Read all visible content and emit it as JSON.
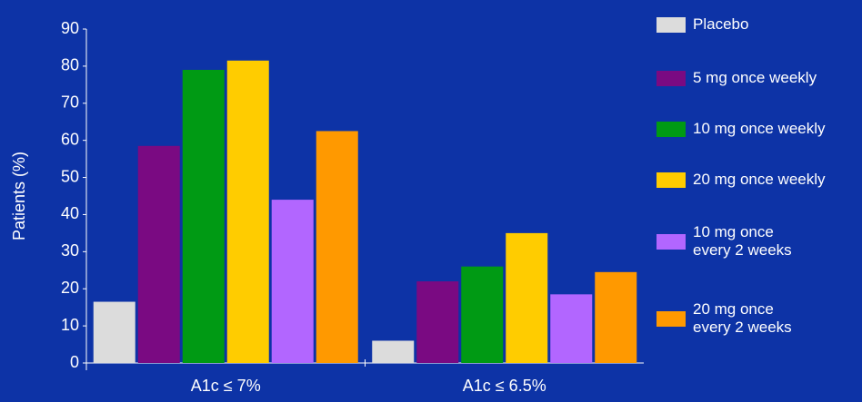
{
  "chart_data": {
    "type": "bar",
    "y_label": "Patients (%)",
    "categories": [
      "A1c ≤ 7%",
      "A1c ≤ 6.5%"
    ],
    "series": [
      {
        "name": "Placebo",
        "color": "#dcdcdc",
        "values": [
          16.5,
          6
        ]
      },
      {
        "name": "5 mg once weekly",
        "color": "#7a0a82",
        "values": [
          58.5,
          22
        ]
      },
      {
        "name": "10 mg once weekly",
        "color": "#009a14",
        "values": [
          79,
          26
        ]
      },
      {
        "name": "20 mg once weekly",
        "color": "#ffcc00",
        "values": [
          81.5,
          35
        ]
      },
      {
        "name": "10 mg once\nevery 2 weeks",
        "color": "#b266ff",
        "values": [
          44,
          18.5
        ]
      },
      {
        "name": "20 mg once\nevery 2 weeks",
        "color": "#ff9900",
        "values": [
          62.5,
          24.5
        ]
      }
    ],
    "ylim": [
      0,
      90
    ],
    "yticks": [
      0,
      10,
      20,
      30,
      40,
      50,
      60,
      70,
      80,
      90
    ]
  }
}
